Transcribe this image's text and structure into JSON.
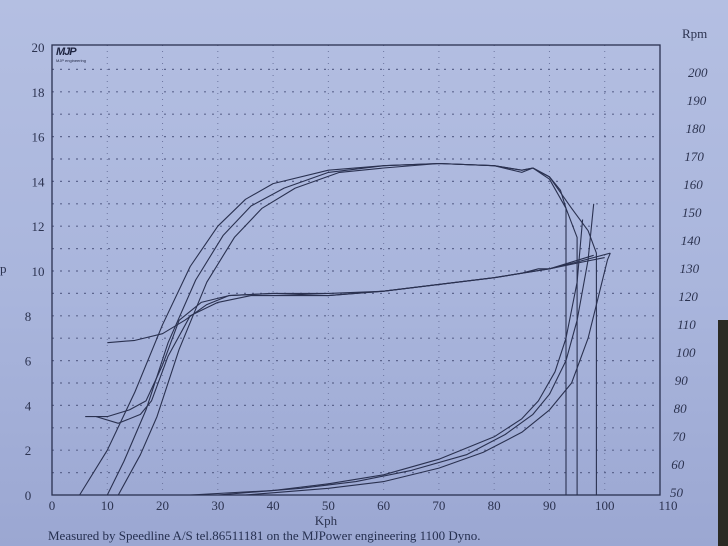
{
  "chart_data": {
    "type": "line",
    "xlabel": "Kph",
    "ylabel_left": "p",
    "ylabel_right": "Rpm",
    "xlim": [
      0,
      110
    ],
    "ylim_left": [
      0,
      20
    ],
    "ylim_right": [
      50,
      200
    ],
    "x_ticks": [
      0,
      10,
      20,
      30,
      40,
      50,
      60,
      70,
      80,
      90,
      100,
      110
    ],
    "y_left_ticks": [
      0,
      2,
      4,
      6,
      8,
      10,
      12,
      14,
      16,
      18,
      20
    ],
    "y_right_ticks": [
      50,
      60,
      70,
      80,
      90,
      100,
      110,
      120,
      130,
      140,
      150,
      160,
      170,
      180,
      190,
      200
    ],
    "grid": true,
    "line_color": "#2a3150",
    "series": [
      {
        "x": [
          5,
          10,
          15,
          20,
          25,
          30,
          35,
          40,
          50,
          60,
          70,
          80,
          85,
          87,
          90,
          92,
          93,
          93
        ],
        "y": [
          0,
          2,
          4.6,
          7.6,
          10.2,
          12,
          13.2,
          13.9,
          14.5,
          14.7,
          14.8,
          14.7,
          14.5,
          14.6,
          14.2,
          13.6,
          12.8,
          0
        ]
      },
      {
        "x": [
          10,
          13,
          17,
          21,
          26,
          31,
          36,
          42,
          50,
          60,
          70,
          80,
          85,
          87,
          90,
          93,
          95,
          95
        ],
        "y": [
          0,
          1.5,
          3.8,
          6.8,
          9.6,
          11.6,
          12.9,
          13.7,
          14.4,
          14.7,
          14.8,
          14.7,
          14.5,
          14.6,
          14.1,
          12.8,
          11.5,
          0
        ]
      },
      {
        "x": [
          12,
          16,
          19,
          23,
          28,
          33,
          38,
          44,
          52,
          60,
          70,
          80,
          85,
          87,
          90,
          94,
          97,
          98.5,
          98.5
        ],
        "y": [
          0,
          1.8,
          3.5,
          6.5,
          9.5,
          11.5,
          12.8,
          13.7,
          14.4,
          14.6,
          14.8,
          14.7,
          14.4,
          14.6,
          14.2,
          12.8,
          11.8,
          10.8,
          0
        ]
      },
      {
        "x": [
          10,
          15,
          20,
          24,
          28,
          32,
          40,
          50,
          60,
          70,
          80,
          85,
          88,
          90,
          95,
          101
        ],
        "y": [
          6.8,
          6.9,
          7.2,
          7.8,
          8.5,
          8.9,
          9.0,
          8.9,
          9.1,
          9.4,
          9.7,
          9.9,
          10.1,
          10.1,
          10.4,
          10.8
        ]
      },
      {
        "x": [
          6,
          10,
          14,
          17,
          20,
          23,
          27,
          32,
          40,
          50,
          60,
          70,
          80,
          90,
          96,
          100
        ],
        "y": [
          3.5,
          3.5,
          3.8,
          4.2,
          5.8,
          7.8,
          8.6,
          8.9,
          9,
          9,
          9.1,
          9.4,
          9.7,
          10.1,
          10.4,
          10.6
        ]
      },
      {
        "x": [
          8,
          12,
          16,
          18,
          21,
          25,
          30,
          36,
          42,
          50,
          60,
          70,
          80,
          90,
          98
        ],
        "y": [
          3.5,
          3.2,
          3.6,
          4.2,
          6.2,
          8,
          8.6,
          8.9,
          8.9,
          8.9,
          9.1,
          9.4,
          9.7,
          10.1,
          10.7
        ]
      },
      {
        "x": [
          25,
          40,
          50,
          60,
          70,
          80,
          85,
          88,
          91,
          93,
          95,
          96
        ],
        "y": [
          0,
          0.2,
          0.5,
          0.9,
          1.6,
          2.6,
          3.4,
          4.2,
          5.5,
          7,
          9.5,
          12.3
        ]
      },
      {
        "x": [
          30,
          45,
          55,
          65,
          75,
          82,
          87,
          90,
          93,
          95,
          97,
          98
        ],
        "y": [
          0,
          0.3,
          0.6,
          1.1,
          1.8,
          2.7,
          3.6,
          4.5,
          6,
          7.8,
          10.5,
          13
        ]
      },
      {
        "x": [
          35,
          50,
          60,
          70,
          78,
          85,
          90,
          94,
          97,
          99,
          100.5,
          101
        ],
        "y": [
          0,
          0.3,
          0.6,
          1.2,
          1.9,
          2.8,
          3.8,
          5,
          7,
          9,
          10.5,
          10.8
        ]
      }
    ]
  },
  "logo": {
    "mark": "MJP",
    "sub": "MJP engineering"
  },
  "footer": "Measured by Speedline A/S tel.86511181 on the MJPower engineering 1100 Dyno."
}
